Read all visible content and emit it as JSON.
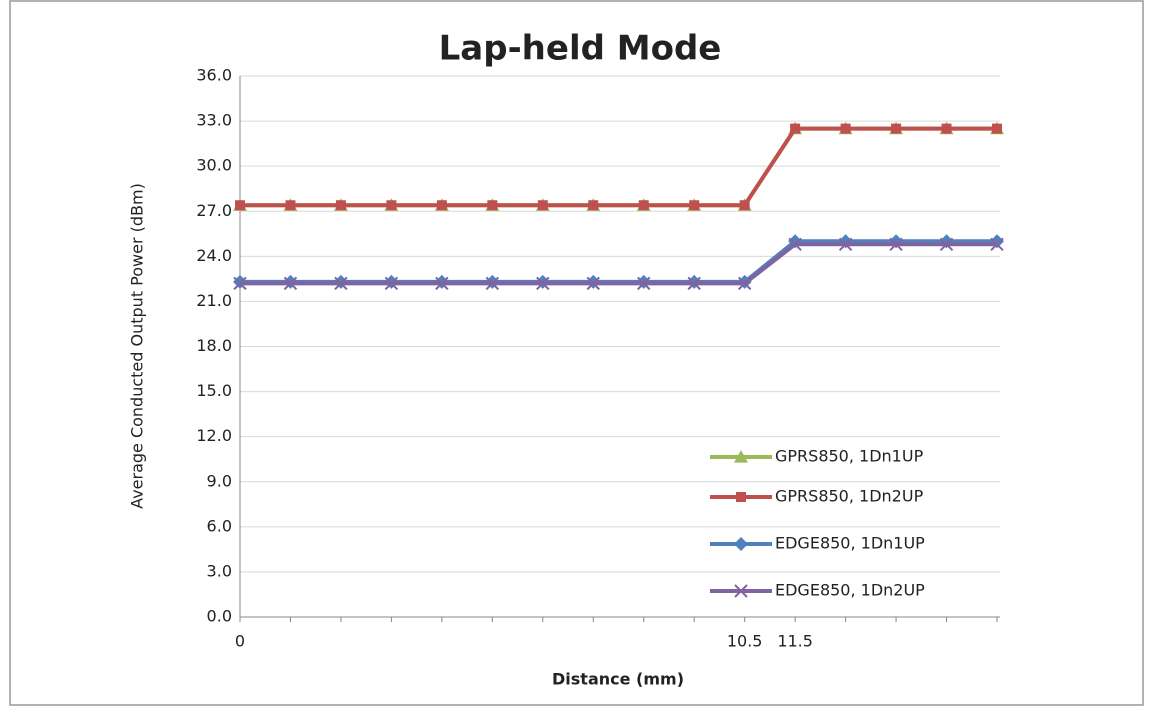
{
  "chart_data": {
    "type": "line",
    "title": "Lap-held Mode",
    "x_label": "Distance (mm)",
    "y_label": "Average Conducted Output Power (dBm)",
    "categories": [
      "0",
      null,
      null,
      null,
      null,
      null,
      null,
      null,
      null,
      null,
      "10.5",
      "11.5",
      null,
      null,
      null,
      null
    ],
    "series": [
      {
        "name": "GPRS850, 1Dn1UP",
        "color": "#9bbb59",
        "marker": "triangle",
        "values": [
          27.4,
          27.4,
          27.4,
          27.4,
          27.4,
          27.4,
          27.4,
          27.4,
          27.4,
          27.4,
          27.4,
          32.5,
          32.5,
          32.5,
          32.5,
          32.5
        ]
      },
      {
        "name": "GPRS850, 1Dn2UP",
        "color": "#c0504d",
        "marker": "square",
        "values": [
          27.4,
          27.4,
          27.4,
          27.4,
          27.4,
          27.4,
          27.4,
          27.4,
          27.4,
          27.4,
          27.4,
          32.5,
          32.5,
          32.5,
          32.5,
          32.5
        ]
      },
      {
        "name": "EDGE850, 1Dn1UP",
        "color": "#4f81bd",
        "marker": "diamond",
        "values": [
          22.3,
          22.3,
          22.3,
          22.3,
          22.3,
          22.3,
          22.3,
          22.3,
          22.3,
          22.3,
          22.3,
          25.0,
          25.0,
          25.0,
          25.0,
          25.0
        ]
      },
      {
        "name": "EDGE850, 1Dn2UP",
        "color": "#8064a2",
        "marker": "x",
        "values": [
          22.2,
          22.2,
          22.2,
          22.2,
          22.2,
          22.2,
          22.2,
          22.2,
          22.2,
          22.2,
          22.2,
          24.8,
          24.8,
          24.8,
          24.8,
          24.8
        ]
      }
    ],
    "ylim": [
      0,
      36
    ],
    "yticks": [
      {
        "value": 0,
        "label": "0.0"
      },
      {
        "value": 3,
        "label": "3.0"
      },
      {
        "value": 6,
        "label": "6.0"
      },
      {
        "value": 9,
        "label": "9.0"
      },
      {
        "value": 12,
        "label": "12.0"
      },
      {
        "value": 15,
        "label": "15.0"
      },
      {
        "value": 18,
        "label": "18.0"
      },
      {
        "value": 21,
        "label": "21.0"
      },
      {
        "value": 24,
        "label": "24.0"
      },
      {
        "value": 27,
        "label": "27.0"
      },
      {
        "value": 30,
        "label": "30.0"
      },
      {
        "value": 33,
        "label": "33.0"
      },
      {
        "value": 36,
        "label": "36.0"
      }
    ],
    "grid": true,
    "legend": "lower right"
  }
}
